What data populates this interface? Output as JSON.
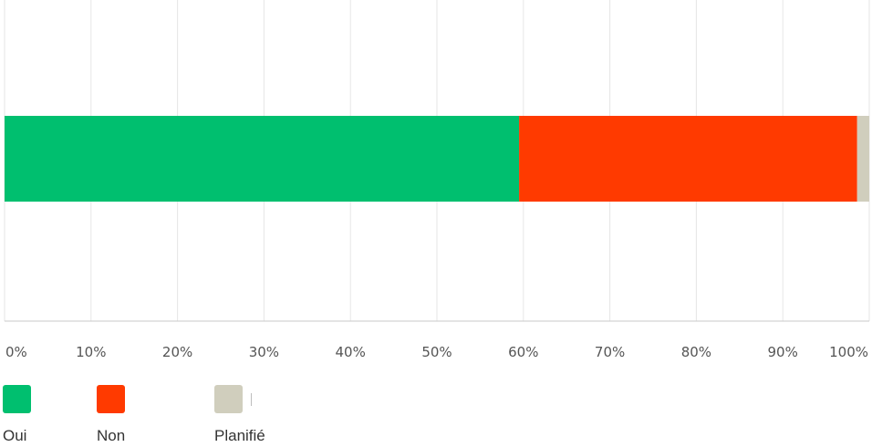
{
  "chart_data": {
    "type": "bar",
    "orientation": "horizontal",
    "stacked": true,
    "categories": [
      ""
    ],
    "series": [
      {
        "name": "Oui",
        "values": [
          59.5
        ],
        "color": "#00bf6f"
      },
      {
        "name": "Non",
        "values": [
          39.1
        ],
        "color": "#ff3a00"
      },
      {
        "name": "Planifié",
        "values": [
          1.4
        ],
        "color": "#d0cebd"
      }
    ],
    "xlim": [
      0,
      100
    ],
    "x_ticks": [
      "0%",
      "10%",
      "20%",
      "30%",
      "40%",
      "50%",
      "60%",
      "70%",
      "80%",
      "90%",
      "100%"
    ],
    "grid": true,
    "legend_position": "bottom-left",
    "title": "",
    "xlabel": "",
    "ylabel": ""
  }
}
